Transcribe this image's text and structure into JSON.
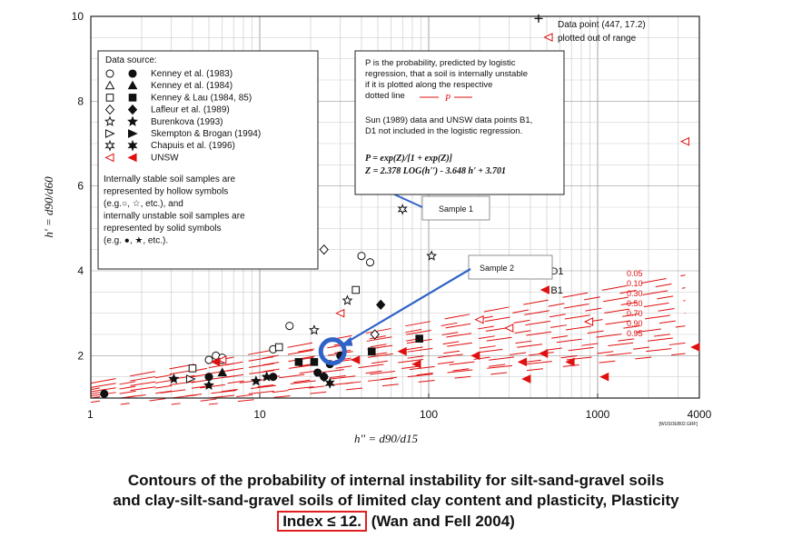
{
  "chart_data": {
    "type": "scatter",
    "x_scale": "log",
    "xlim": [
      1,
      4000
    ],
    "ylim": [
      1,
      10
    ],
    "x_ticks": [
      "1",
      "10",
      "100",
      "1000",
      "4000"
    ],
    "y_ticks": [
      "2",
      "4",
      "6",
      "8",
      "10"
    ],
    "xlabel": "h'' = d90/d15",
    "ylabel": "h' = d90/d60",
    "grid": true,
    "corner_tag": "[WUSOEB02.GRF]",
    "legend": {
      "title": "Data source:",
      "entries": [
        {
          "label": "Kenney et al. (1983)",
          "hollow": "circle",
          "solid": "circle"
        },
        {
          "label": "Kenney et al. (1984)",
          "hollow": "triangle",
          "solid": "triangle"
        },
        {
          "label": "Kenney & Lau (1984, 85)",
          "hollow": "square",
          "solid": "square"
        },
        {
          "label": "Lafleur et al. (1989)",
          "hollow": "diamond",
          "solid": "diamond"
        },
        {
          "label": "Burenkova (1993)",
          "hollow": "star",
          "solid": "star"
        },
        {
          "label": "Skempton & Brogan (1994)",
          "hollow": "bowtie",
          "solid": "bowtie"
        },
        {
          "label": "Chapuis et al. (1996)",
          "hollow": "hexstar",
          "solid": "hexstar"
        },
        {
          "label": "UNSW",
          "hollow": "tri-left",
          "solid": "tri-left",
          "color": "#e01010"
        }
      ],
      "note_lines": [
        "Internally stable soil samples are",
        "represented by hollow symbols",
        "(e.g.○, ☆, etc.), and",
        "internally unstable soil samples are",
        "represented by solid symbols",
        "(e.g. ●, ★, etc.)."
      ]
    },
    "info_box": {
      "lines": [
        "P is the probability, predicted by logistic",
        "regression, that a soil is internally unstable",
        "if it is plotted along the respective",
        "dotted line"
      ],
      "p_symbol": "P",
      "lines2": [
        "Sun (1989) data and UNSW data points B1,",
        "D1 not included in the logistic regression."
      ],
      "formula1": "P = exp(Z)/[1 + exp(Z)]",
      "formula2": "Z = 2.378 LOG(h'') - 3.648 h' + 3.701"
    },
    "top_right_legend": {
      "solid_label": "Data point (447, 17.2)",
      "out_label": "plotted out of range"
    },
    "contour_labels": [
      "0.05",
      "0.10",
      "0.30",
      "0.50",
      "0.70",
      "0.90",
      "0.95"
    ],
    "contour_color": "#e01010",
    "annotations": [
      {
        "text": "Sample 1",
        "x": 46,
        "y": 6.1
      },
      {
        "text": "Sample 2",
        "x": 27,
        "y": 2.1
      }
    ],
    "point_labels": [
      {
        "text": "D1",
        "x": 490,
        "y": 4.0
      },
      {
        "text": "B1",
        "x": 490,
        "y": 3.55
      }
    ],
    "series": [
      {
        "name": "Kenney et al. (1983)",
        "marker": "circle",
        "fill": "hollow",
        "points": [
          [
            5,
            1.9
          ],
          [
            5.5,
            2.0
          ],
          [
            6,
            1.9
          ],
          [
            12,
            2.15
          ],
          [
            15,
            2.7
          ],
          [
            40,
            4.35
          ],
          [
            45,
            4.2
          ],
          [
            6,
            1.95
          ]
        ]
      },
      {
        "name": "Kenney et al. (1983)",
        "marker": "circle",
        "fill": "solid",
        "points": [
          [
            1.2,
            1.1
          ],
          [
            5,
            1.5
          ],
          [
            12,
            1.5
          ],
          [
            22,
            1.6
          ],
          [
            24,
            1.5
          ],
          [
            26,
            1.8
          ],
          [
            30,
            2.0
          ]
        ]
      },
      {
        "name": "Kenney et al. (1984)",
        "marker": "triangle",
        "fill": "solid",
        "points": [
          [
            6,
            1.6
          ]
        ]
      },
      {
        "name": "Kenney & Lau (1984, 85)",
        "marker": "square",
        "fill": "hollow",
        "points": [
          [
            4,
            1.7
          ],
          [
            37,
            3.55
          ],
          [
            13,
            2.2
          ]
        ]
      },
      {
        "name": "Kenney & Lau (1984, 85)",
        "marker": "square",
        "fill": "solid",
        "points": [
          [
            17,
            1.85
          ],
          [
            46,
            2.1
          ],
          [
            88,
            2.4
          ],
          [
            21,
            1.85
          ]
        ]
      },
      {
        "name": "Lafleur et al. (1989)",
        "marker": "diamond",
        "fill": "hollow",
        "points": [
          [
            24,
            4.5
          ],
          [
            48,
            2.5
          ]
        ]
      },
      {
        "name": "Lafleur et al. (1989)",
        "marker": "diamond",
        "fill": "solid",
        "points": [
          [
            52,
            3.2
          ],
          [
            24,
            1.5
          ]
        ]
      },
      {
        "name": "Burenkova (1993)",
        "marker": "star",
        "fill": "hollow",
        "points": [
          [
            21,
            2.6
          ],
          [
            33,
            3.3
          ],
          [
            104,
            4.35
          ]
        ]
      },
      {
        "name": "Burenkova (1993)",
        "marker": "star",
        "fill": "solid",
        "points": [
          [
            3.1,
            1.45
          ],
          [
            5,
            1.3
          ],
          [
            9.5,
            1.4
          ],
          [
            11,
            1.5
          ]
        ]
      },
      {
        "name": "Skempton & Brogan (1994)",
        "marker": "bowtie",
        "fill": "hollow",
        "points": [
          [
            3.9,
            1.45
          ]
        ]
      },
      {
        "name": "Chapuis et al. (1996)",
        "marker": "hexstar",
        "fill": "hollow",
        "points": [
          [
            70,
            5.45
          ]
        ]
      },
      {
        "name": "Chapuis et al. (1996)",
        "marker": "hexstar",
        "fill": "solid",
        "points": [
          [
            26,
            1.35
          ]
        ]
      },
      {
        "name": "UNSW",
        "marker": "tri-left",
        "fill": "hollow",
        "points": [
          [
            6,
            1.9
          ],
          [
            30,
            3.0
          ],
          [
            200,
            2.85
          ],
          [
            300,
            2.65
          ],
          [
            890,
            2.8
          ],
          [
            3300,
            7.05
          ]
        ]
      },
      {
        "name": "UNSW",
        "marker": "tri-left",
        "fill": "solid",
        "points": [
          [
            5.5,
            1.85
          ],
          [
            70,
            2.1
          ],
          [
            85,
            1.8
          ],
          [
            190,
            2.0
          ],
          [
            360,
            1.85
          ],
          [
            380,
            1.45
          ],
          [
            480,
            2.05
          ],
          [
            490,
            3.55
          ],
          [
            690,
            1.85
          ],
          [
            1100,
            1.5
          ],
          [
            3800,
            2.2
          ],
          [
            37,
            1.9
          ]
        ]
      },
      {
        "name": "Data point (447, 17.2)",
        "marker": "plus",
        "fill": "solid",
        "points": [
          [
            447,
            9.95
          ]
        ]
      }
    ]
  },
  "caption": {
    "line1": "Contours of the probability of internal instability for silt-sand-gravel soils",
    "line2": "and clay-silt-sand-gravel soils of limited clay content and plasticity, Plasticity",
    "index_text": "Index ≤ 12.",
    "citation": "(Wan and Fell 2004)"
  }
}
